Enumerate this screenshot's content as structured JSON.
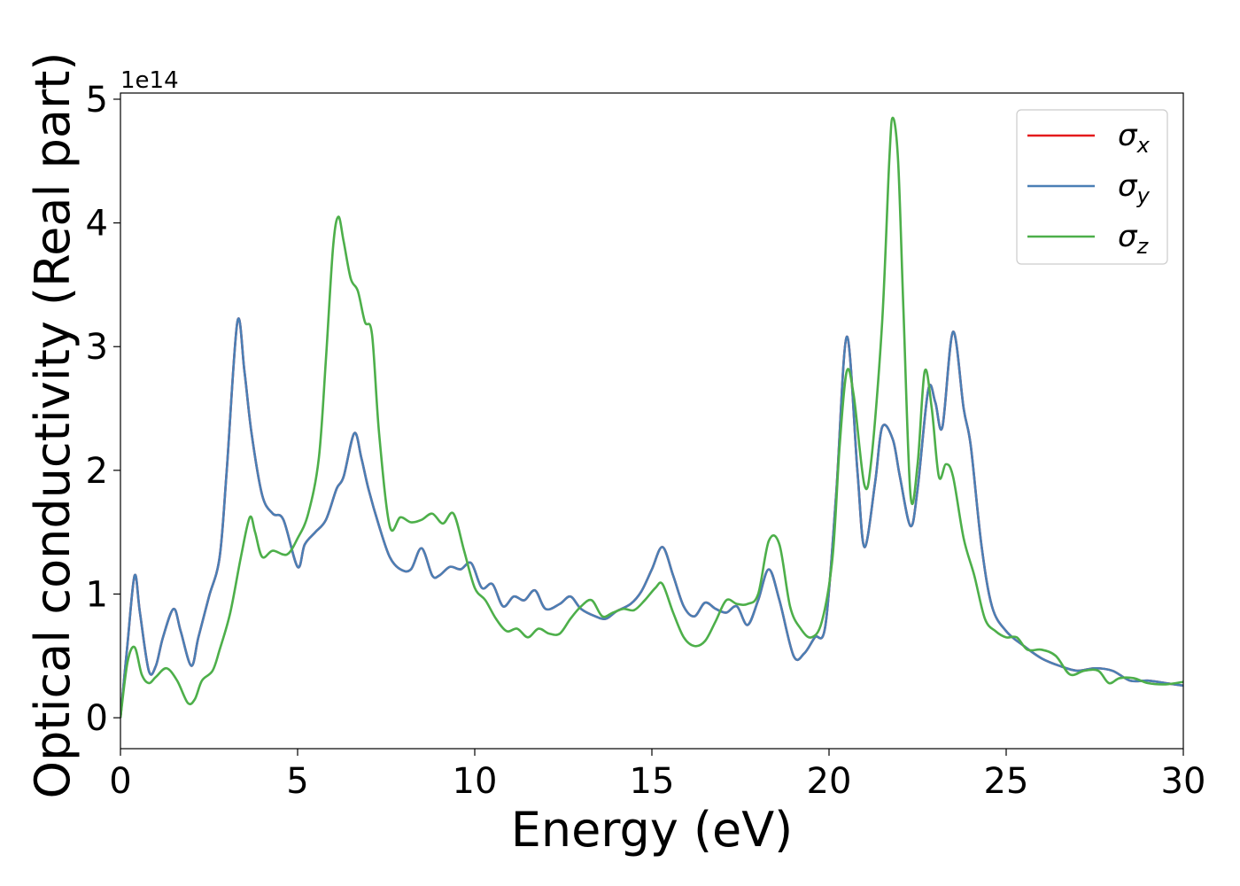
{
  "chart_data": {
    "type": "line",
    "xlabel": "Energy (eV)",
    "ylabel": "Optical conductivity (Real part)",
    "y_multiplier_label": "1e14",
    "xlim": [
      0,
      30
    ],
    "ylim": [
      -0.25,
      5.05
    ],
    "x_ticks": [
      0,
      5,
      10,
      15,
      20,
      25,
      30
    ],
    "y_ticks": [
      0,
      1,
      2,
      3,
      4,
      5
    ],
    "x_tick_labels": [
      "0",
      "5",
      "10",
      "15",
      "20",
      "25",
      "30"
    ],
    "y_tick_labels": [
      "0",
      "1",
      "2",
      "3",
      "4",
      "5"
    ],
    "grid": false,
    "legend_position": "top-right",
    "series": [
      {
        "name": "σx",
        "subscript": "x",
        "color": "#e41a1c",
        "points": [
          [
            0,
            0
          ],
          [
            0.2,
            0.6
          ],
          [
            0.4,
            1.15
          ],
          [
            0.55,
            0.85
          ],
          [
            0.8,
            0.38
          ],
          [
            1.0,
            0.42
          ],
          [
            1.2,
            0.65
          ],
          [
            1.5,
            0.88
          ],
          [
            1.7,
            0.7
          ],
          [
            2.0,
            0.42
          ],
          [
            2.2,
            0.65
          ],
          [
            2.5,
            0.98
          ],
          [
            2.8,
            1.3
          ],
          [
            3.0,
            2.0
          ],
          [
            3.3,
            3.2
          ],
          [
            3.5,
            2.8
          ],
          [
            3.7,
            2.3
          ],
          [
            4.0,
            1.8
          ],
          [
            4.3,
            1.65
          ],
          [
            4.6,
            1.6
          ],
          [
            5.0,
            1.22
          ],
          [
            5.2,
            1.4
          ],
          [
            5.5,
            1.5
          ],
          [
            5.8,
            1.6
          ],
          [
            6.1,
            1.85
          ],
          [
            6.3,
            1.95
          ],
          [
            6.6,
            2.3
          ],
          [
            6.8,
            2.1
          ],
          [
            7.0,
            1.85
          ],
          [
            7.3,
            1.55
          ],
          [
            7.6,
            1.3
          ],
          [
            7.9,
            1.2
          ],
          [
            8.2,
            1.2
          ],
          [
            8.5,
            1.37
          ],
          [
            8.8,
            1.15
          ],
          [
            9.0,
            1.15
          ],
          [
            9.3,
            1.22
          ],
          [
            9.6,
            1.2
          ],
          [
            9.9,
            1.25
          ],
          [
            10.2,
            1.05
          ],
          [
            10.5,
            1.08
          ],
          [
            10.8,
            0.9
          ],
          [
            11.1,
            0.98
          ],
          [
            11.4,
            0.95
          ],
          [
            11.7,
            1.03
          ],
          [
            12.0,
            0.88
          ],
          [
            12.4,
            0.92
          ],
          [
            12.7,
            0.98
          ],
          [
            13.0,
            0.88
          ],
          [
            13.4,
            0.82
          ],
          [
            13.7,
            0.8
          ],
          [
            14.0,
            0.86
          ],
          [
            14.4,
            0.92
          ],
          [
            14.7,
            1.02
          ],
          [
            15.0,
            1.2
          ],
          [
            15.3,
            1.38
          ],
          [
            15.6,
            1.15
          ],
          [
            15.9,
            0.9
          ],
          [
            16.2,
            0.82
          ],
          [
            16.5,
            0.93
          ],
          [
            16.8,
            0.88
          ],
          [
            17.1,
            0.85
          ],
          [
            17.4,
            0.9
          ],
          [
            17.7,
            0.75
          ],
          [
            18.0,
            0.95
          ],
          [
            18.3,
            1.2
          ],
          [
            18.6,
            0.95
          ],
          [
            19.0,
            0.5
          ],
          [
            19.3,
            0.52
          ],
          [
            19.6,
            0.65
          ],
          [
            19.9,
            0.75
          ],
          [
            20.2,
            1.8
          ],
          [
            20.5,
            3.08
          ],
          [
            20.8,
            2.0
          ],
          [
            21.0,
            1.38
          ],
          [
            21.3,
            1.9
          ],
          [
            21.5,
            2.35
          ],
          [
            21.8,
            2.25
          ],
          [
            22.0,
            1.95
          ],
          [
            22.3,
            1.55
          ],
          [
            22.5,
            1.85
          ],
          [
            22.8,
            2.65
          ],
          [
            23.0,
            2.55
          ],
          [
            23.2,
            2.35
          ],
          [
            23.5,
            3.12
          ],
          [
            23.8,
            2.5
          ],
          [
            24.0,
            2.2
          ],
          [
            24.3,
            1.4
          ],
          [
            24.6,
            0.9
          ],
          [
            25.0,
            0.7
          ],
          [
            25.5,
            0.58
          ],
          [
            26.0,
            0.48
          ],
          [
            26.5,
            0.42
          ],
          [
            27.0,
            0.38
          ],
          [
            27.5,
            0.4
          ],
          [
            28.0,
            0.38
          ],
          [
            28.5,
            0.3
          ],
          [
            29.0,
            0.3
          ],
          [
            29.5,
            0.28
          ],
          [
            30.0,
            0.26
          ]
        ]
      },
      {
        "name": "σy",
        "subscript": "y",
        "color": "#4a7fb5",
        "points": [
          [
            0,
            0
          ],
          [
            0.2,
            0.6
          ],
          [
            0.4,
            1.15
          ],
          [
            0.55,
            0.85
          ],
          [
            0.8,
            0.38
          ],
          [
            1.0,
            0.42
          ],
          [
            1.2,
            0.65
          ],
          [
            1.5,
            0.88
          ],
          [
            1.7,
            0.7
          ],
          [
            2.0,
            0.42
          ],
          [
            2.2,
            0.65
          ],
          [
            2.5,
            0.98
          ],
          [
            2.8,
            1.3
          ],
          [
            3.0,
            2.0
          ],
          [
            3.3,
            3.2
          ],
          [
            3.5,
            2.8
          ],
          [
            3.7,
            2.3
          ],
          [
            4.0,
            1.8
          ],
          [
            4.3,
            1.65
          ],
          [
            4.6,
            1.6
          ],
          [
            5.0,
            1.22
          ],
          [
            5.2,
            1.4
          ],
          [
            5.5,
            1.5
          ],
          [
            5.8,
            1.6
          ],
          [
            6.1,
            1.85
          ],
          [
            6.3,
            1.95
          ],
          [
            6.6,
            2.3
          ],
          [
            6.8,
            2.1
          ],
          [
            7.0,
            1.85
          ],
          [
            7.3,
            1.55
          ],
          [
            7.6,
            1.3
          ],
          [
            7.9,
            1.2
          ],
          [
            8.2,
            1.2
          ],
          [
            8.5,
            1.37
          ],
          [
            8.8,
            1.15
          ],
          [
            9.0,
            1.15
          ],
          [
            9.3,
            1.22
          ],
          [
            9.6,
            1.2
          ],
          [
            9.9,
            1.25
          ],
          [
            10.2,
            1.05
          ],
          [
            10.5,
            1.08
          ],
          [
            10.8,
            0.9
          ],
          [
            11.1,
            0.98
          ],
          [
            11.4,
            0.95
          ],
          [
            11.7,
            1.03
          ],
          [
            12.0,
            0.88
          ],
          [
            12.4,
            0.92
          ],
          [
            12.7,
            0.98
          ],
          [
            13.0,
            0.88
          ],
          [
            13.4,
            0.82
          ],
          [
            13.7,
            0.8
          ],
          [
            14.0,
            0.86
          ],
          [
            14.4,
            0.92
          ],
          [
            14.7,
            1.02
          ],
          [
            15.0,
            1.2
          ],
          [
            15.3,
            1.38
          ],
          [
            15.6,
            1.15
          ],
          [
            15.9,
            0.9
          ],
          [
            16.2,
            0.82
          ],
          [
            16.5,
            0.93
          ],
          [
            16.8,
            0.88
          ],
          [
            17.1,
            0.85
          ],
          [
            17.4,
            0.9
          ],
          [
            17.7,
            0.75
          ],
          [
            18.0,
            0.95
          ],
          [
            18.3,
            1.2
          ],
          [
            18.6,
            0.95
          ],
          [
            19.0,
            0.5
          ],
          [
            19.3,
            0.52
          ],
          [
            19.6,
            0.65
          ],
          [
            19.9,
            0.75
          ],
          [
            20.2,
            1.8
          ],
          [
            20.5,
            3.08
          ],
          [
            20.8,
            2.0
          ],
          [
            21.0,
            1.38
          ],
          [
            21.3,
            1.9
          ],
          [
            21.5,
            2.35
          ],
          [
            21.8,
            2.25
          ],
          [
            22.0,
            1.95
          ],
          [
            22.3,
            1.55
          ],
          [
            22.5,
            1.85
          ],
          [
            22.8,
            2.65
          ],
          [
            23.0,
            2.55
          ],
          [
            23.2,
            2.35
          ],
          [
            23.5,
            3.12
          ],
          [
            23.8,
            2.5
          ],
          [
            24.0,
            2.2
          ],
          [
            24.3,
            1.4
          ],
          [
            24.6,
            0.9
          ],
          [
            25.0,
            0.7
          ],
          [
            25.5,
            0.58
          ],
          [
            26.0,
            0.48
          ],
          [
            26.5,
            0.42
          ],
          [
            27.0,
            0.38
          ],
          [
            27.5,
            0.4
          ],
          [
            28.0,
            0.38
          ],
          [
            28.5,
            0.3
          ],
          [
            29.0,
            0.3
          ],
          [
            29.5,
            0.28
          ],
          [
            30.0,
            0.26
          ]
        ]
      },
      {
        "name": "σz",
        "subscript": "z",
        "color": "#4daf4a",
        "points": [
          [
            0,
            0
          ],
          [
            0.2,
            0.45
          ],
          [
            0.4,
            0.57
          ],
          [
            0.6,
            0.35
          ],
          [
            0.8,
            0.28
          ],
          [
            1.0,
            0.33
          ],
          [
            1.3,
            0.4
          ],
          [
            1.6,
            0.3
          ],
          [
            1.9,
            0.12
          ],
          [
            2.1,
            0.15
          ],
          [
            2.3,
            0.3
          ],
          [
            2.6,
            0.38
          ],
          [
            2.8,
            0.55
          ],
          [
            3.1,
            0.85
          ],
          [
            3.4,
            1.3
          ],
          [
            3.65,
            1.62
          ],
          [
            3.8,
            1.5
          ],
          [
            4.0,
            1.3
          ],
          [
            4.3,
            1.35
          ],
          [
            4.7,
            1.32
          ],
          [
            5.0,
            1.45
          ],
          [
            5.3,
            1.65
          ],
          [
            5.6,
            2.1
          ],
          [
            5.8,
            2.9
          ],
          [
            6.0,
            3.8
          ],
          [
            6.15,
            4.05
          ],
          [
            6.3,
            3.85
          ],
          [
            6.5,
            3.55
          ],
          [
            6.7,
            3.45
          ],
          [
            6.9,
            3.2
          ],
          [
            7.1,
            3.1
          ],
          [
            7.3,
            2.3
          ],
          [
            7.6,
            1.55
          ],
          [
            7.9,
            1.62
          ],
          [
            8.2,
            1.58
          ],
          [
            8.5,
            1.6
          ],
          [
            8.8,
            1.65
          ],
          [
            9.1,
            1.57
          ],
          [
            9.4,
            1.65
          ],
          [
            9.7,
            1.35
          ],
          [
            10.0,
            1.05
          ],
          [
            10.3,
            0.95
          ],
          [
            10.6,
            0.8
          ],
          [
            10.9,
            0.7
          ],
          [
            11.2,
            0.72
          ],
          [
            11.5,
            0.65
          ],
          [
            11.8,
            0.72
          ],
          [
            12.1,
            0.68
          ],
          [
            12.4,
            0.68
          ],
          [
            12.7,
            0.8
          ],
          [
            13.0,
            0.9
          ],
          [
            13.3,
            0.95
          ],
          [
            13.6,
            0.82
          ],
          [
            13.9,
            0.85
          ],
          [
            14.2,
            0.88
          ],
          [
            14.5,
            0.87
          ],
          [
            14.8,
            0.95
          ],
          [
            15.1,
            1.05
          ],
          [
            15.3,
            1.08
          ],
          [
            15.6,
            0.85
          ],
          [
            15.9,
            0.65
          ],
          [
            16.2,
            0.58
          ],
          [
            16.5,
            0.62
          ],
          [
            16.8,
            0.78
          ],
          [
            17.1,
            0.95
          ],
          [
            17.4,
            0.92
          ],
          [
            17.7,
            0.92
          ],
          [
            18.0,
            1.0
          ],
          [
            18.3,
            1.43
          ],
          [
            18.6,
            1.4
          ],
          [
            18.9,
            0.9
          ],
          [
            19.2,
            0.72
          ],
          [
            19.5,
            0.65
          ],
          [
            19.8,
            0.78
          ],
          [
            20.1,
            1.3
          ],
          [
            20.3,
            2.2
          ],
          [
            20.5,
            2.8
          ],
          [
            20.7,
            2.6
          ],
          [
            21.0,
            1.88
          ],
          [
            21.2,
            2.1
          ],
          [
            21.5,
            3.2
          ],
          [
            21.7,
            4.5
          ],
          [
            21.8,
            4.85
          ],
          [
            21.95,
            4.5
          ],
          [
            22.1,
            3.3
          ],
          [
            22.3,
            1.8
          ],
          [
            22.5,
            2.05
          ],
          [
            22.7,
            2.8
          ],
          [
            22.9,
            2.5
          ],
          [
            23.1,
            1.95
          ],
          [
            23.3,
            2.05
          ],
          [
            23.5,
            1.95
          ],
          [
            23.8,
            1.45
          ],
          [
            24.1,
            1.15
          ],
          [
            24.4,
            0.8
          ],
          [
            24.7,
            0.7
          ],
          [
            25.0,
            0.65
          ],
          [
            25.3,
            0.65
          ],
          [
            25.6,
            0.55
          ],
          [
            26.0,
            0.55
          ],
          [
            26.4,
            0.5
          ],
          [
            26.8,
            0.35
          ],
          [
            27.2,
            0.38
          ],
          [
            27.6,
            0.38
          ],
          [
            27.9,
            0.28
          ],
          [
            28.2,
            0.32
          ],
          [
            28.6,
            0.32
          ],
          [
            29.0,
            0.28
          ],
          [
            29.5,
            0.27
          ],
          [
            30.0,
            0.29
          ]
        ]
      }
    ]
  }
}
